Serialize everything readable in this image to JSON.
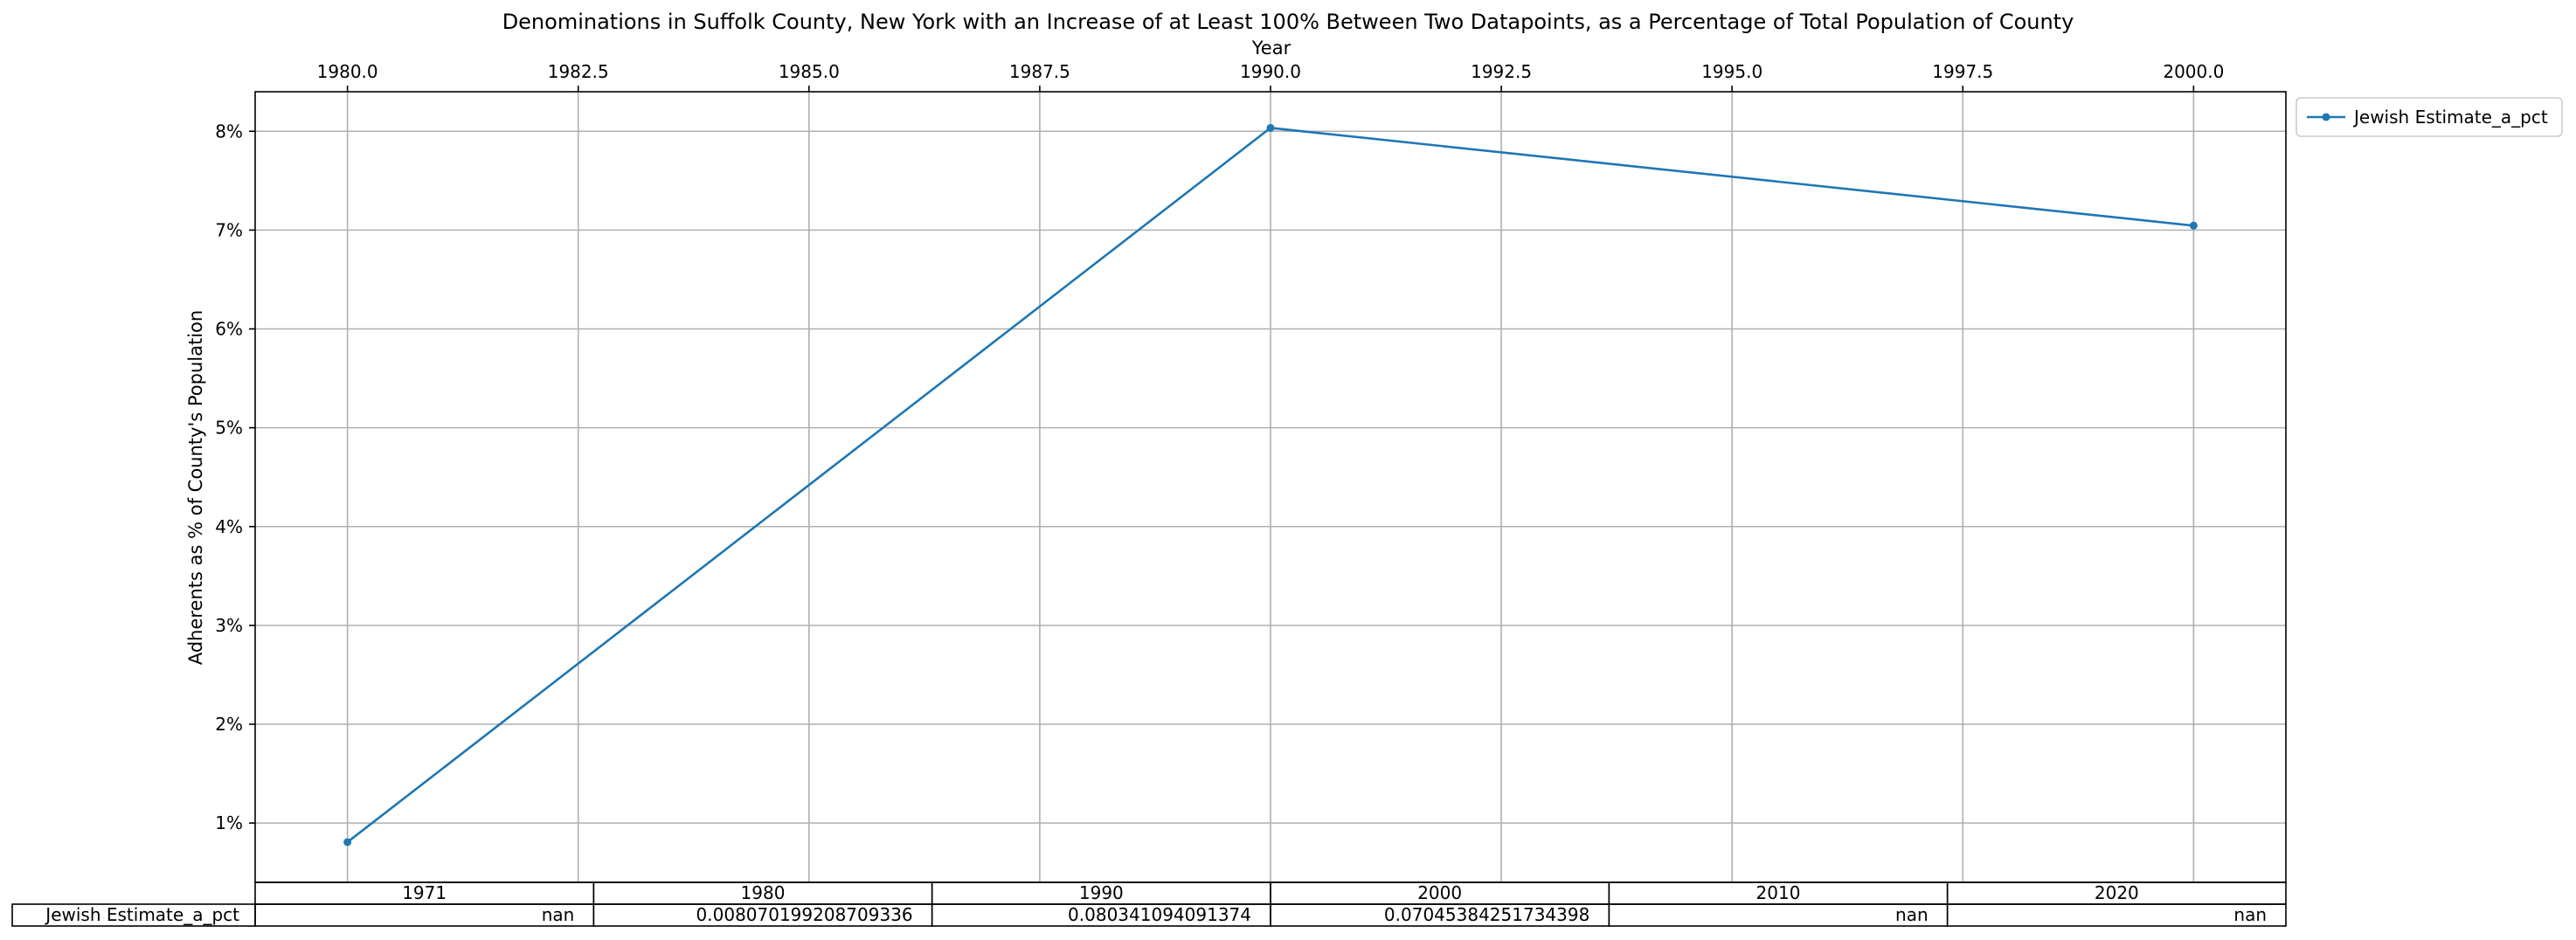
{
  "chart_data": {
    "type": "line",
    "title": "Denominations in Suffolk County, New York with an Increase of at Least 100% Between Two Datapoints, as a Percentage of Total Population of County",
    "xlabel": "Year",
    "ylabel": "Adherents as % of County's Population",
    "x_ticks": [
      "1980.0",
      "1982.5",
      "1985.0",
      "1987.5",
      "1990.0",
      "1992.5",
      "1995.0",
      "1997.5",
      "2000.0"
    ],
    "y_ticks": [
      "1%",
      "2%",
      "3%",
      "4%",
      "5%",
      "6%",
      "7%",
      "8%"
    ],
    "xlim": [
      1979.0,
      2001.0
    ],
    "ylim": [
      0.4,
      8.4
    ],
    "grid": true,
    "legend_position": "outside-top-right",
    "series": [
      {
        "name": "Jewish Estimate_a_pct",
        "color": "#1f77b4",
        "x": [
          1980,
          1990,
          2000
        ],
        "y": [
          0.807,
          8.034,
          7.045
        ]
      }
    ],
    "table": {
      "col_labels": [
        "1971",
        "1980",
        "1990",
        "2000",
        "2010",
        "2020"
      ],
      "rows": [
        {
          "label": "Jewish Estimate_a_pct",
          "cells": [
            "nan",
            "0.008070199208709336",
            "0.080341094091374",
            "0.07045384251734398",
            "nan",
            "nan"
          ]
        }
      ]
    }
  }
}
